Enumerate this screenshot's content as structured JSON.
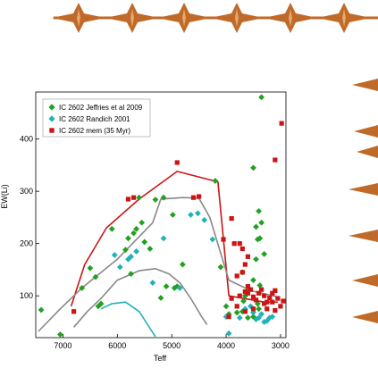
{
  "colors": {
    "decor": "#c06a2a",
    "decor_light": "#e6a868"
  },
  "chart_data": {
    "type": "scatter",
    "xlabel": "Teff",
    "ylabel": "EW(Li)",
    "x_reversed": true,
    "xlim": [
      7500,
      2900
    ],
    "ylim": [
      20,
      490
    ],
    "xticks": [
      7000,
      6000,
      5000,
      4000,
      3000
    ],
    "yticks": [
      100,
      200,
      300,
      400
    ],
    "grid": false,
    "legend_position": "top-left",
    "series": [
      {
        "name": "IC 2602 Jeffries et al 2009",
        "marker": "diamond",
        "color": "#22a022",
        "points": [
          [
            7400,
            73
          ],
          [
            7050,
            26
          ],
          [
            6650,
            115
          ],
          [
            6500,
            153
          ],
          [
            6400,
            136
          ],
          [
            6350,
            80
          ],
          [
            6300,
            85
          ],
          [
            6100,
            228
          ],
          [
            5850,
            188
          ],
          [
            5800,
            210
          ],
          [
            5750,
            142
          ],
          [
            5700,
            220
          ],
          [
            5650,
            228
          ],
          [
            5600,
            288
          ],
          [
            5550,
            240
          ],
          [
            5500,
            203
          ],
          [
            5400,
            190
          ],
          [
            5300,
            284
          ],
          [
            5150,
            288
          ],
          [
            4980,
            255
          ],
          [
            4900,
            118
          ],
          [
            5100,
            118
          ],
          [
            5200,
            96
          ],
          [
            4800,
            160
          ],
          [
            4950,
            115
          ],
          [
            4200,
            320
          ],
          [
            4000,
            80
          ],
          [
            3950,
            65
          ],
          [
            3800,
            68
          ],
          [
            3700,
            145
          ],
          [
            3680,
            90
          ],
          [
            3650,
            100
          ],
          [
            3600,
            110
          ],
          [
            3500,
            345
          ],
          [
            3450,
            232
          ],
          [
            3420,
            208
          ],
          [
            3400,
            262
          ],
          [
            3380,
            210
          ],
          [
            3350,
            240
          ],
          [
            3300,
            180
          ],
          [
            3450,
            170
          ],
          [
            3500,
            130
          ],
          [
            3400,
            75
          ],
          [
            3350,
            480
          ],
          [
            3380,
            120
          ],
          [
            3420,
            85
          ],
          [
            3500,
            60
          ],
          [
            3600,
            58
          ],
          [
            3700,
            70
          ],
          [
            4100,
            155
          ]
        ]
      },
      {
        "name": "IC 2602 Randich 2001",
        "marker": "diamond",
        "color": "#20b2b8",
        "points": [
          [
            6050,
            178
          ],
          [
            5950,
            155
          ],
          [
            5800,
            170
          ],
          [
            5750,
            175
          ],
          [
            5650,
            185
          ],
          [
            5350,
            125
          ],
          [
            5150,
            210
          ],
          [
            4850,
            115
          ],
          [
            4650,
            255
          ],
          [
            4520,
            258
          ],
          [
            4400,
            245
          ],
          [
            4250,
            208
          ],
          [
            4000,
            60
          ],
          [
            3950,
            28
          ],
          [
            3750,
            58
          ],
          [
            3650,
            75
          ],
          [
            3550,
            80
          ],
          [
            3450,
            55
          ],
          [
            3400,
            58
          ],
          [
            3350,
            65
          ],
          [
            3300,
            50
          ],
          [
            3250,
            52
          ],
          [
            3200,
            58
          ],
          [
            3150,
            60
          ],
          [
            3500,
            68
          ]
        ]
      },
      {
        "name": "IC 2602 mem (35 Myr)",
        "marker": "square",
        "color": "#cc1414",
        "points": [
          [
            6800,
            70
          ],
          [
            5800,
            285
          ],
          [
            5700,
            288
          ],
          [
            4900,
            355
          ],
          [
            4600,
            288
          ],
          [
            4500,
            290
          ],
          [
            4050,
            208
          ],
          [
            3900,
            248
          ],
          [
            3850,
            200
          ],
          [
            3750,
            200
          ],
          [
            3700,
            190
          ],
          [
            3600,
            175
          ],
          [
            3650,
            160
          ],
          [
            3700,
            145
          ],
          [
            3800,
            138
          ],
          [
            3750,
            100
          ],
          [
            3650,
            108
          ],
          [
            3600,
            118
          ],
          [
            3550,
            112
          ],
          [
            3500,
            98
          ],
          [
            3450,
            92
          ],
          [
            3400,
            105
          ],
          [
            3350,
            112
          ],
          [
            3300,
            100
          ],
          [
            3250,
            88
          ],
          [
            3200,
            96
          ],
          [
            3150,
            88
          ],
          [
            3100,
            110
          ],
          [
            3050,
            95
          ],
          [
            3000,
            80
          ],
          [
            2950,
            90
          ],
          [
            3100,
            72
          ],
          [
            3250,
            75
          ],
          [
            3500,
            75
          ],
          [
            3650,
            70
          ],
          [
            3800,
            80
          ],
          [
            3900,
            95
          ],
          [
            3950,
            60
          ],
          [
            3100,
            360
          ],
          [
            2980,
            430
          ],
          [
            3600,
            105
          ],
          [
            3300,
            85
          ],
          [
            3150,
            105
          ]
        ]
      }
    ],
    "curves": [
      {
        "color": "#cc1414",
        "points": [
          [
            6850,
            80
          ],
          [
            6600,
            160
          ],
          [
            6200,
            230
          ],
          [
            5600,
            285
          ],
          [
            4900,
            338
          ],
          [
            4150,
            318
          ],
          [
            3950,
            100
          ],
          [
            3300,
            88
          ],
          [
            3050,
            88
          ]
        ]
      },
      {
        "color": "#888888",
        "points": [
          [
            7450,
            32
          ],
          [
            7050,
            75
          ],
          [
            6650,
            115
          ],
          [
            6000,
            170
          ],
          [
            5350,
            240
          ],
          [
            5200,
            285
          ],
          [
            4800,
            288
          ],
          [
            4500,
            287
          ],
          [
            4300,
            250
          ],
          [
            3950,
            130
          ],
          [
            3550,
            110
          ],
          [
            3050,
            98
          ]
        ]
      },
      {
        "color": "#888888",
        "points": [
          [
            6800,
            40
          ],
          [
            6550,
            70
          ],
          [
            6300,
            95
          ],
          [
            6000,
            130
          ],
          [
            5600,
            148
          ],
          [
            5300,
            152
          ],
          [
            5050,
            142
          ],
          [
            4850,
            125
          ],
          [
            4650,
            95
          ],
          [
            4450,
            60
          ],
          [
            4350,
            45
          ]
        ]
      },
      {
        "color": "#20b2b8",
        "points": [
          [
            6300,
            75
          ],
          [
            6100,
            85
          ],
          [
            5850,
            88
          ],
          [
            5600,
            70
          ],
          [
            5400,
            38
          ],
          [
            5300,
            22
          ]
        ]
      }
    ]
  }
}
